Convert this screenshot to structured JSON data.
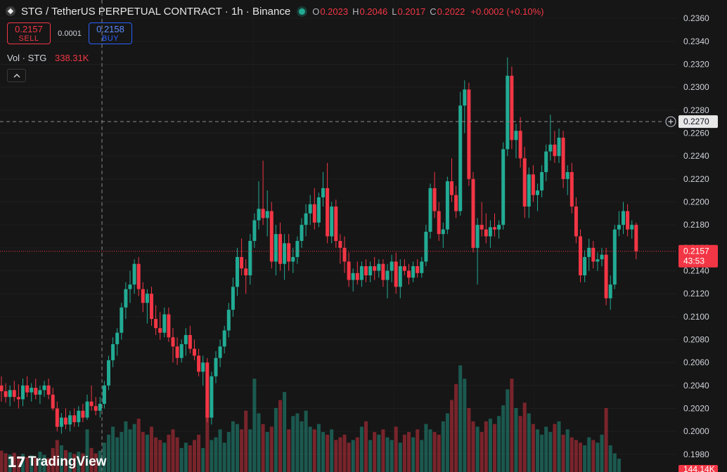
{
  "header": {
    "symbol_title": "STG / TetherUS PERPETUAL CONTRACT · 1h · Binance",
    "ohlc": [
      {
        "key": "O",
        "value": "0.2023"
      },
      {
        "key": "H",
        "value": "0.2046"
      },
      {
        "key": "L",
        "value": "0.2017"
      },
      {
        "key": "C",
        "value": "0.2022"
      }
    ],
    "change": "+0.0002 (+0.10%)"
  },
  "trade": {
    "sell_price": "0.2157",
    "sell_label": "SELL",
    "spread": "0.0001",
    "buy_price": "0.2158",
    "buy_label": "BUY"
  },
  "volume_legend": {
    "label": "Vol · STG",
    "value": "338.31K"
  },
  "collapse_icon": "chevron-up-icon",
  "price_axis": {
    "ticks": [
      "0.2360",
      "0.2340",
      "0.2320",
      "0.2300",
      "0.2280",
      "0.2260",
      "0.2240",
      "0.2220",
      "0.2200",
      "0.2180",
      "0.2160",
      "0.2140",
      "0.2120",
      "0.2100",
      "0.2080",
      "0.2060",
      "0.2040",
      "0.2020",
      "0.2000",
      "0.1980"
    ],
    "crosshair_price": "0.2270",
    "current_price": "0.2157",
    "countdown": "43:53",
    "volume_label": "144.14K"
  },
  "branding": {
    "logo_text": "TradingView"
  },
  "colors": {
    "up": "#22ab94",
    "down": "#f23645",
    "background": "#161616",
    "accent": "#2962ff"
  },
  "chart_data": {
    "type": "candlestick",
    "timeframe": "1h",
    "ylim": [
      0.1975,
      0.2365
    ],
    "candles": [
      {
        "o": 0.204,
        "h": 0.2048,
        "l": 0.2026,
        "c": 0.2035
      },
      {
        "o": 0.2035,
        "h": 0.2042,
        "l": 0.2025,
        "c": 0.203
      },
      {
        "o": 0.203,
        "h": 0.204,
        "l": 0.2022,
        "c": 0.2036
      },
      {
        "o": 0.2036,
        "h": 0.2044,
        "l": 0.2026,
        "c": 0.203
      },
      {
        "o": 0.203,
        "h": 0.2041,
        "l": 0.202,
        "c": 0.2028
      },
      {
        "o": 0.2028,
        "h": 0.2046,
        "l": 0.2022,
        "c": 0.204
      },
      {
        "o": 0.204,
        "h": 0.2048,
        "l": 0.203,
        "c": 0.2034
      },
      {
        "o": 0.2034,
        "h": 0.2042,
        "l": 0.2026,
        "c": 0.2038
      },
      {
        "o": 0.2038,
        "h": 0.2046,
        "l": 0.2028,
        "c": 0.2032
      },
      {
        "o": 0.2032,
        "h": 0.204,
        "l": 0.2024,
        "c": 0.2036
      },
      {
        "o": 0.2036,
        "h": 0.2044,
        "l": 0.203,
        "c": 0.204
      },
      {
        "o": 0.204,
        "h": 0.2046,
        "l": 0.2028,
        "c": 0.2032
      },
      {
        "o": 0.2032,
        "h": 0.2038,
        "l": 0.2018,
        "c": 0.202
      },
      {
        "o": 0.202,
        "h": 0.2026,
        "l": 0.2,
        "c": 0.2004
      },
      {
        "o": 0.2004,
        "h": 0.2016,
        "l": 0.1998,
        "c": 0.2012
      },
      {
        "o": 0.2012,
        "h": 0.202,
        "l": 0.2002,
        "c": 0.2006
      },
      {
        "o": 0.2006,
        "h": 0.2018,
        "l": 0.2,
        "c": 0.2014
      },
      {
        "o": 0.2014,
        "h": 0.202,
        "l": 0.2004,
        "c": 0.2008
      },
      {
        "o": 0.2008,
        "h": 0.2022,
        "l": 0.2004,
        "c": 0.2018
      },
      {
        "o": 0.2018,
        "h": 0.2024,
        "l": 0.2008,
        "c": 0.2012
      },
      {
        "o": 0.2012,
        "h": 0.2032,
        "l": 0.201,
        "c": 0.2026
      },
      {
        "o": 0.2026,
        "h": 0.204,
        "l": 0.2018,
        "c": 0.2022
      },
      {
        "o": 0.2022,
        "h": 0.203,
        "l": 0.2014,
        "c": 0.2018
      },
      {
        "o": 0.2018,
        "h": 0.203,
        "l": 0.2012,
        "c": 0.2024
      },
      {
        "o": 0.2024,
        "h": 0.2044,
        "l": 0.202,
        "c": 0.204
      },
      {
        "o": 0.204,
        "h": 0.2066,
        "l": 0.2036,
        "c": 0.2062
      },
      {
        "o": 0.2062,
        "h": 0.2082,
        "l": 0.2056,
        "c": 0.2076
      },
      {
        "o": 0.2076,
        "h": 0.209,
        "l": 0.2066,
        "c": 0.2086
      },
      {
        "o": 0.2086,
        "h": 0.2112,
        "l": 0.208,
        "c": 0.2108
      },
      {
        "o": 0.2108,
        "h": 0.213,
        "l": 0.2098,
        "c": 0.2124
      },
      {
        "o": 0.2124,
        "h": 0.214,
        "l": 0.2112,
        "c": 0.2128
      },
      {
        "o": 0.2128,
        "h": 0.215,
        "l": 0.212,
        "c": 0.2146
      },
      {
        "o": 0.2146,
        "h": 0.2152,
        "l": 0.2118,
        "c": 0.2124
      },
      {
        "o": 0.2124,
        "h": 0.213,
        "l": 0.2104,
        "c": 0.2112
      },
      {
        "o": 0.2112,
        "h": 0.2124,
        "l": 0.2094,
        "c": 0.212
      },
      {
        "o": 0.212,
        "h": 0.2126,
        "l": 0.2092,
        "c": 0.2098
      },
      {
        "o": 0.2098,
        "h": 0.211,
        "l": 0.2084,
        "c": 0.209
      },
      {
        "o": 0.209,
        "h": 0.2104,
        "l": 0.208,
        "c": 0.2086
      },
      {
        "o": 0.2086,
        "h": 0.2108,
        "l": 0.2082,
        "c": 0.2102
      },
      {
        "o": 0.2102,
        "h": 0.2108,
        "l": 0.2078,
        "c": 0.2082
      },
      {
        "o": 0.2082,
        "h": 0.209,
        "l": 0.206,
        "c": 0.2074
      },
      {
        "o": 0.2074,
        "h": 0.2082,
        "l": 0.2058,
        "c": 0.2064
      },
      {
        "o": 0.2064,
        "h": 0.208,
        "l": 0.206,
        "c": 0.2076
      },
      {
        "o": 0.2076,
        "h": 0.209,
        "l": 0.2066,
        "c": 0.2084
      },
      {
        "o": 0.2084,
        "h": 0.2092,
        "l": 0.2068,
        "c": 0.2072
      },
      {
        "o": 0.2072,
        "h": 0.208,
        "l": 0.2062,
        "c": 0.2066
      },
      {
        "o": 0.2066,
        "h": 0.2072,
        "l": 0.2048,
        "c": 0.2052
      },
      {
        "o": 0.2052,
        "h": 0.2066,
        "l": 0.204,
        "c": 0.206
      },
      {
        "o": 0.206,
        "h": 0.2064,
        "l": 0.2008,
        "c": 0.2012
      },
      {
        "o": 0.2012,
        "h": 0.2052,
        "l": 0.2006,
        "c": 0.2048
      },
      {
        "o": 0.2048,
        "h": 0.207,
        "l": 0.2042,
        "c": 0.2064
      },
      {
        "o": 0.2064,
        "h": 0.208,
        "l": 0.2056,
        "c": 0.2074
      },
      {
        "o": 0.2074,
        "h": 0.2092,
        "l": 0.2068,
        "c": 0.2088
      },
      {
        "o": 0.2088,
        "h": 0.2112,
        "l": 0.2082,
        "c": 0.2106
      },
      {
        "o": 0.2106,
        "h": 0.2134,
        "l": 0.21,
        "c": 0.2126
      },
      {
        "o": 0.2126,
        "h": 0.216,
        "l": 0.2118,
        "c": 0.2152
      },
      {
        "o": 0.2152,
        "h": 0.2168,
        "l": 0.2136,
        "c": 0.2142
      },
      {
        "o": 0.2142,
        "h": 0.215,
        "l": 0.212,
        "c": 0.2136
      },
      {
        "o": 0.2136,
        "h": 0.2172,
        "l": 0.2128,
        "c": 0.2166
      },
      {
        "o": 0.2166,
        "h": 0.219,
        "l": 0.216,
        "c": 0.2184
      },
      {
        "o": 0.2184,
        "h": 0.2218,
        "l": 0.2176,
        "c": 0.2194
      },
      {
        "o": 0.2194,
        "h": 0.2236,
        "l": 0.218,
        "c": 0.2186
      },
      {
        "o": 0.2186,
        "h": 0.221,
        "l": 0.217,
        "c": 0.2192
      },
      {
        "o": 0.2192,
        "h": 0.22,
        "l": 0.2142,
        "c": 0.2148
      },
      {
        "o": 0.2148,
        "h": 0.218,
        "l": 0.2136,
        "c": 0.2172
      },
      {
        "o": 0.2172,
        "h": 0.2182,
        "l": 0.214,
        "c": 0.2146
      },
      {
        "o": 0.2146,
        "h": 0.2172,
        "l": 0.2132,
        "c": 0.2164
      },
      {
        "o": 0.2164,
        "h": 0.2172,
        "l": 0.214,
        "c": 0.2148
      },
      {
        "o": 0.2148,
        "h": 0.216,
        "l": 0.2138,
        "c": 0.2152
      },
      {
        "o": 0.2152,
        "h": 0.217,
        "l": 0.2146,
        "c": 0.2166
      },
      {
        "o": 0.2166,
        "h": 0.2186,
        "l": 0.216,
        "c": 0.218
      },
      {
        "o": 0.218,
        "h": 0.2198,
        "l": 0.217,
        "c": 0.219
      },
      {
        "o": 0.219,
        "h": 0.2206,
        "l": 0.218,
        "c": 0.2198
      },
      {
        "o": 0.2198,
        "h": 0.2212,
        "l": 0.2176,
        "c": 0.2182
      },
      {
        "o": 0.2182,
        "h": 0.2208,
        "l": 0.2178,
        "c": 0.2204
      },
      {
        "o": 0.2204,
        "h": 0.2226,
        "l": 0.2196,
        "c": 0.2212
      },
      {
        "o": 0.2212,
        "h": 0.2234,
        "l": 0.2164,
        "c": 0.217
      },
      {
        "o": 0.217,
        "h": 0.22,
        "l": 0.2164,
        "c": 0.2196
      },
      {
        "o": 0.2196,
        "h": 0.2202,
        "l": 0.216,
        "c": 0.2166
      },
      {
        "o": 0.2166,
        "h": 0.2172,
        "l": 0.2146,
        "c": 0.216
      },
      {
        "o": 0.216,
        "h": 0.217,
        "l": 0.2138,
        "c": 0.2148
      },
      {
        "o": 0.2148,
        "h": 0.2156,
        "l": 0.2126,
        "c": 0.2132
      },
      {
        "o": 0.2132,
        "h": 0.2142,
        "l": 0.2122,
        "c": 0.2138
      },
      {
        "o": 0.2138,
        "h": 0.2148,
        "l": 0.2128,
        "c": 0.2132
      },
      {
        "o": 0.2132,
        "h": 0.2148,
        "l": 0.2126,
        "c": 0.2144
      },
      {
        "o": 0.2144,
        "h": 0.215,
        "l": 0.213,
        "c": 0.2136
      },
      {
        "o": 0.2136,
        "h": 0.2148,
        "l": 0.213,
        "c": 0.2144
      },
      {
        "o": 0.2144,
        "h": 0.2152,
        "l": 0.2132,
        "c": 0.214
      },
      {
        "o": 0.214,
        "h": 0.215,
        "l": 0.2134,
        "c": 0.2146
      },
      {
        "o": 0.2146,
        "h": 0.215,
        "l": 0.2126,
        "c": 0.2132
      },
      {
        "o": 0.2132,
        "h": 0.2146,
        "l": 0.2116,
        "c": 0.214
      },
      {
        "o": 0.214,
        "h": 0.2154,
        "l": 0.213,
        "c": 0.2148
      },
      {
        "o": 0.2148,
        "h": 0.2156,
        "l": 0.212,
        "c": 0.2126
      },
      {
        "o": 0.2126,
        "h": 0.215,
        "l": 0.2116,
        "c": 0.2144
      },
      {
        "o": 0.2144,
        "h": 0.215,
        "l": 0.2136,
        "c": 0.214
      },
      {
        "o": 0.214,
        "h": 0.2146,
        "l": 0.2128,
        "c": 0.2134
      },
      {
        "o": 0.2134,
        "h": 0.2148,
        "l": 0.213,
        "c": 0.2144
      },
      {
        "o": 0.2144,
        "h": 0.215,
        "l": 0.2134,
        "c": 0.2138
      },
      {
        "o": 0.2138,
        "h": 0.2152,
        "l": 0.2134,
        "c": 0.2148
      },
      {
        "o": 0.2148,
        "h": 0.218,
        "l": 0.2144,
        "c": 0.2174
      },
      {
        "o": 0.2174,
        "h": 0.2216,
        "l": 0.2168,
        "c": 0.2212
      },
      {
        "o": 0.2212,
        "h": 0.2226,
        "l": 0.2186,
        "c": 0.2192
      },
      {
        "o": 0.2192,
        "h": 0.22,
        "l": 0.2166,
        "c": 0.2172
      },
      {
        "o": 0.2172,
        "h": 0.2182,
        "l": 0.216,
        "c": 0.2176
      },
      {
        "o": 0.2176,
        "h": 0.2222,
        "l": 0.2172,
        "c": 0.2218
      },
      {
        "o": 0.2218,
        "h": 0.2238,
        "l": 0.22,
        "c": 0.2206
      },
      {
        "o": 0.2206,
        "h": 0.2214,
        "l": 0.2186,
        "c": 0.2192
      },
      {
        "o": 0.2192,
        "h": 0.2296,
        "l": 0.2188,
        "c": 0.2284
      },
      {
        "o": 0.2284,
        "h": 0.2306,
        "l": 0.226,
        "c": 0.2298
      },
      {
        "o": 0.2298,
        "h": 0.2304,
        "l": 0.2214,
        "c": 0.222
      },
      {
        "o": 0.222,
        "h": 0.2226,
        "l": 0.2156,
        "c": 0.216
      },
      {
        "o": 0.216,
        "h": 0.2186,
        "l": 0.2128,
        "c": 0.218
      },
      {
        "o": 0.218,
        "h": 0.22,
        "l": 0.217,
        "c": 0.2176
      },
      {
        "o": 0.2176,
        "h": 0.219,
        "l": 0.2164,
        "c": 0.217
      },
      {
        "o": 0.217,
        "h": 0.2184,
        "l": 0.216,
        "c": 0.2178
      },
      {
        "o": 0.2178,
        "h": 0.219,
        "l": 0.217,
        "c": 0.2176
      },
      {
        "o": 0.2176,
        "h": 0.2184,
        "l": 0.2168,
        "c": 0.218
      },
      {
        "o": 0.218,
        "h": 0.2252,
        "l": 0.2176,
        "c": 0.2246
      },
      {
        "o": 0.2246,
        "h": 0.2326,
        "l": 0.224,
        "c": 0.231
      },
      {
        "o": 0.231,
        "h": 0.2318,
        "l": 0.2246,
        "c": 0.2254
      },
      {
        "o": 0.2254,
        "h": 0.2268,
        "l": 0.2238,
        "c": 0.2262
      },
      {
        "o": 0.2262,
        "h": 0.2274,
        "l": 0.223,
        "c": 0.2238
      },
      {
        "o": 0.2238,
        "h": 0.2248,
        "l": 0.2186,
        "c": 0.2196
      },
      {
        "o": 0.2196,
        "h": 0.223,
        "l": 0.2186,
        "c": 0.2224
      },
      {
        "o": 0.2224,
        "h": 0.2232,
        "l": 0.22,
        "c": 0.2206
      },
      {
        "o": 0.2206,
        "h": 0.2216,
        "l": 0.2192,
        "c": 0.221
      },
      {
        "o": 0.221,
        "h": 0.2232,
        "l": 0.2204,
        "c": 0.2226
      },
      {
        "o": 0.2226,
        "h": 0.225,
        "l": 0.2218,
        "c": 0.2244
      },
      {
        "o": 0.2244,
        "h": 0.2276,
        "l": 0.2236,
        "c": 0.225
      },
      {
        "o": 0.225,
        "h": 0.2262,
        "l": 0.2234,
        "c": 0.224
      },
      {
        "o": 0.224,
        "h": 0.2264,
        "l": 0.2234,
        "c": 0.2256
      },
      {
        "o": 0.2256,
        "h": 0.2262,
        "l": 0.2212,
        "c": 0.222
      },
      {
        "o": 0.222,
        "h": 0.2232,
        "l": 0.2206,
        "c": 0.2226
      },
      {
        "o": 0.2226,
        "h": 0.2234,
        "l": 0.219,
        "c": 0.2196
      },
      {
        "o": 0.2196,
        "h": 0.2204,
        "l": 0.2164,
        "c": 0.217
      },
      {
        "o": 0.217,
        "h": 0.2176,
        "l": 0.213,
        "c": 0.2136
      },
      {
        "o": 0.2136,
        "h": 0.2158,
        "l": 0.213,
        "c": 0.2152
      },
      {
        "o": 0.2152,
        "h": 0.2168,
        "l": 0.214,
        "c": 0.216
      },
      {
        "o": 0.216,
        "h": 0.2166,
        "l": 0.2142,
        "c": 0.2148
      },
      {
        "o": 0.2148,
        "h": 0.2156,
        "l": 0.214,
        "c": 0.215
      },
      {
        "o": 0.215,
        "h": 0.216,
        "l": 0.2144,
        "c": 0.2154
      },
      {
        "o": 0.2154,
        "h": 0.216,
        "l": 0.211,
        "c": 0.2116
      },
      {
        "o": 0.2116,
        "h": 0.2136,
        "l": 0.2106,
        "c": 0.2128
      },
      {
        "o": 0.2128,
        "h": 0.218,
        "l": 0.2124,
        "c": 0.2176
      },
      {
        "o": 0.2176,
        "h": 0.2192,
        "l": 0.217,
        "c": 0.218
      },
      {
        "o": 0.218,
        "h": 0.22,
        "l": 0.2172,
        "c": 0.2192
      },
      {
        "o": 0.2192,
        "h": 0.2198,
        "l": 0.217,
        "c": 0.2176
      },
      {
        "o": 0.2176,
        "h": 0.2184,
        "l": 0.2168,
        "c": 0.218
      },
      {
        "o": 0.218,
        "h": 0.2182,
        "l": 0.215,
        "c": 0.2157
      }
    ],
    "volume_max": 4400,
    "volumes": [
      800,
      700,
      650,
      720,
      600,
      680,
      560,
      620,
      540,
      760,
      640,
      520,
      900,
      1200,
      1000,
      820,
      740,
      680,
      760,
      700,
      1600,
      900,
      700,
      800,
      1100,
      1400,
      1700,
      1300,
      1500,
      1900,
      1600,
      1800,
      2000,
      1500,
      1400,
      1700,
      1300,
      1200,
      1100,
      1400,
      1600,
      1300,
      900,
      1100,
      1000,
      1200,
      1400,
      900,
      2600,
      1200,
      1300,
      1600,
      1100,
      1500,
      1900,
      1800,
      1600,
      2300,
      1600,
      3500,
      2200,
      1800,
      1500,
      1700,
      2400,
      2700,
      3000,
      1600,
      2100,
      2200,
      1900,
      2300,
      1700,
      1600,
      1800,
      1500,
      1400,
      1600,
      1200,
      1300,
      1400,
      1100,
      1200,
      1300,
      1700,
      1900,
      1200,
      1500,
      1400,
      1600,
      1300,
      1200,
      1700,
      1100,
      1400,
      1500,
      1300,
      1600,
      1200,
      1800,
      1600,
      1500,
      1400,
      1900,
      2200,
      2700,
      3300,
      4000,
      3500,
      2400,
      1900,
      1700,
      1500,
      1900,
      2000,
      1800,
      2100,
      2500,
      3100,
      3500,
      2400,
      2100,
      2600,
      2200,
      1800,
      1600,
      1400,
      1700,
      1500,
      1800,
      1900,
      1400,
      1600,
      1300,
      1200,
      1100,
      1000,
      1300,
      1200,
      1100,
      1400,
      2400,
      1000,
      700,
      500
    ]
  }
}
